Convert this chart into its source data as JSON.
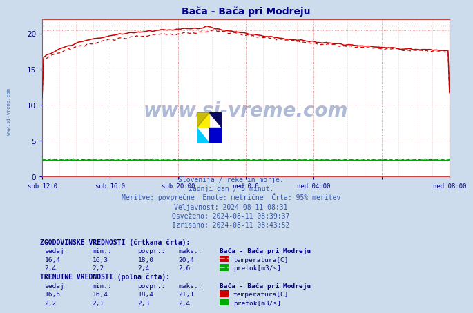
{
  "title": "Bača - Bača pri Modreju",
  "bg_color": "#ccdcec",
  "plot_bg_color": "#ffffff",
  "grid_color_minor": "#e8b0b0",
  "grid_color_major": "#d08080",
  "temp_color": "#cc0000",
  "flow_solid_color": "#00aa00",
  "flow_dashed_color": "#008800",
  "blue_line_color": "#4444bb",
  "title_color": "#00008b",
  "axis_color": "#00008b",
  "info_color": "#3355aa",
  "table_color": "#00008b",
  "sidebar_color": "#2255aa",
  "watermark_color": "#1a3a8a",
  "watermark_alpha": 0.35,
  "xlim": [
    0,
    288
  ],
  "ylim": [
    0,
    22
  ],
  "yticks": [
    0,
    5,
    10,
    15,
    20
  ],
  "x_tick_pos": [
    0,
    48,
    96,
    144,
    192,
    240,
    288
  ],
  "x_tick_labels": [
    "sob 12:0",
    "sob 16:0",
    "sob 20:00",
    "ned 0:0",
    "ned 04:00",
    "",
    "ned 08:00"
  ],
  "ref_line_high": 21.1,
  "ref_line_low": 20.4,
  "info_lines": [
    "Slovenija / reke in morje.",
    "zadnji dan / 5 minut.",
    "Meritve: povprečne  Enote: metrične  Črta: 95% meritev",
    "Veljavnost: 2024-08-11 08:31",
    "Osveženo: 2024-08-11 08:39:37",
    "Izrisano: 2024-08-11 08:43:52"
  ],
  "hist_label": "ZGODOVINSKE VREDNOSTI (črtkana črta):",
  "curr_label": "TRENUTNE VREDNOSTI (polna črta):",
  "col_headers": [
    "sedaj:",
    "min.:",
    "povpr.:",
    "maks.:"
  ],
  "station_label": "Bača - Bača pri Modreju",
  "hist_temp": [
    16.4,
    16.3,
    18.0,
    20.4
  ],
  "hist_flow": [
    2.4,
    2.2,
    2.4,
    2.6
  ],
  "curr_temp": [
    16.6,
    16.4,
    18.4,
    21.1
  ],
  "curr_flow": [
    2.2,
    2.1,
    2.3,
    2.4
  ],
  "temp_label": "temperatura[C]",
  "flow_label": "pretok[m3/s]",
  "sidebar_text": "www.si-vreme.com",
  "watermark_text": "www.si-vreme.com"
}
